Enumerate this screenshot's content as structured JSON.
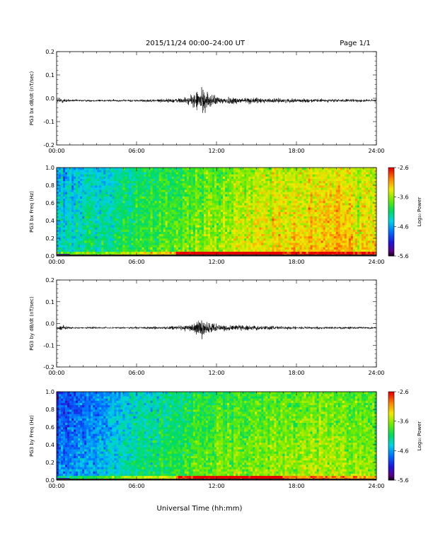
{
  "header": {
    "title": "2015/11/24  00:00–24:00 UT",
    "page": "Page 1/1"
  },
  "footer": {
    "xlabel": "Universal Time (hh:mm)"
  },
  "chart_data": [
    {
      "type": "line",
      "name": "bx-waveform",
      "ylabel": "PG3 bx dB/dt (nT/sec)",
      "xlabel": "",
      "xticks": [
        "00:00",
        "06:00",
        "12:00",
        "18:00",
        "24:00"
      ],
      "xlim": [
        0,
        24
      ],
      "ylim": [
        -0.2,
        0.2
      ],
      "yticks": [
        "0.2",
        "0.1",
        "0.0",
        "-0.1",
        "-0.2"
      ],
      "baseline": -0.01,
      "envelope": [
        {
          "x": 0.0,
          "amp": 0.006
        },
        {
          "x": 0.3,
          "amp": 0.012
        },
        {
          "x": 1.0,
          "amp": 0.004
        },
        {
          "x": 5.0,
          "amp": 0.004
        },
        {
          "x": 7.0,
          "amp": 0.005
        },
        {
          "x": 9.0,
          "amp": 0.008
        },
        {
          "x": 10.0,
          "amp": 0.015
        },
        {
          "x": 10.6,
          "amp": 0.04
        },
        {
          "x": 11.0,
          "amp": 0.045
        },
        {
          "x": 11.4,
          "amp": 0.03
        },
        {
          "x": 12.0,
          "amp": 0.015
        },
        {
          "x": 14.0,
          "amp": 0.012
        },
        {
          "x": 16.0,
          "amp": 0.008
        },
        {
          "x": 20.0,
          "amp": 0.006
        },
        {
          "x": 24.0,
          "amp": 0.005
        }
      ]
    },
    {
      "type": "heatmap",
      "name": "bx-spectrogram",
      "ylabel": "PG3 bx Freq (Hz)",
      "xticks": [
        "00:00",
        "06:00",
        "12:00",
        "18:00",
        "24:00"
      ],
      "xlim": [
        0,
        24
      ],
      "ylim": [
        0.0,
        1.0
      ],
      "yticks": [
        "1.0",
        "0.8",
        "0.6",
        "0.4",
        "0.2",
        "0.0"
      ],
      "colorbar": {
        "label": "Log₁₀ Power",
        "ticks": [
          "-2.6",
          "-3.6",
          "-4.6",
          "-5.6"
        ],
        "range": [
          -5.6,
          -2.6
        ]
      },
      "power_profile": [
        {
          "x": 0,
          "p": -4.3
        },
        {
          "x": 3,
          "p": -4.1
        },
        {
          "x": 6,
          "p": -3.9
        },
        {
          "x": 9,
          "p": -3.7
        },
        {
          "x": 12,
          "p": -3.5
        },
        {
          "x": 15,
          "p": -3.3
        },
        {
          "x": 18,
          "p": -3.2
        },
        {
          "x": 21,
          "p": -3.1
        },
        {
          "x": 24,
          "p": -3.3
        }
      ]
    },
    {
      "type": "line",
      "name": "by-waveform",
      "ylabel": "PG3 by dB/dt (nT/sec)",
      "xlabel": "",
      "xticks": [
        "00:00",
        "06:00",
        "12:00",
        "18:00",
        "24:00"
      ],
      "xlim": [
        0,
        24
      ],
      "ylim": [
        -0.2,
        0.2
      ],
      "yticks": [
        "0.2",
        "0.1",
        "0.0",
        "-0.1",
        "-0.2"
      ],
      "baseline": -0.02,
      "envelope": [
        {
          "x": 0.0,
          "amp": 0.006
        },
        {
          "x": 0.3,
          "amp": 0.01
        },
        {
          "x": 1.0,
          "amp": 0.004
        },
        {
          "x": 5.0,
          "amp": 0.004
        },
        {
          "x": 7.0,
          "amp": 0.005
        },
        {
          "x": 9.0,
          "amp": 0.008
        },
        {
          "x": 10.0,
          "amp": 0.012
        },
        {
          "x": 10.6,
          "amp": 0.03
        },
        {
          "x": 11.0,
          "amp": 0.035
        },
        {
          "x": 11.4,
          "amp": 0.022
        },
        {
          "x": 12.0,
          "amp": 0.012
        },
        {
          "x": 14.0,
          "amp": 0.01
        },
        {
          "x": 16.0,
          "amp": 0.007
        },
        {
          "x": 20.0,
          "amp": 0.005
        },
        {
          "x": 24.0,
          "amp": 0.004
        }
      ]
    },
    {
      "type": "heatmap",
      "name": "by-spectrogram",
      "ylabel": "PG3 by Freq (Hz)",
      "xticks": [
        "00:00",
        "06:00",
        "12:00",
        "18:00",
        "24:00"
      ],
      "xlim": [
        0,
        24
      ],
      "ylim": [
        0.0,
        1.0
      ],
      "yticks": [
        "1.0",
        "0.8",
        "0.6",
        "0.4",
        "0.2",
        "0.0"
      ],
      "colorbar": {
        "label": "Log₁₀ Power",
        "ticks": [
          "-2.6",
          "-3.6",
          "-4.6",
          "-5.6"
        ],
        "range": [
          -5.6,
          -2.6
        ]
      },
      "power_profile": [
        {
          "x": 0,
          "p": -4.7
        },
        {
          "x": 3,
          "p": -4.5
        },
        {
          "x": 6,
          "p": -4.1
        },
        {
          "x": 9,
          "p": -3.9
        },
        {
          "x": 12,
          "p": -3.7
        },
        {
          "x": 15,
          "p": -3.6
        },
        {
          "x": 18,
          "p": -3.5
        },
        {
          "x": 21,
          "p": -3.5
        },
        {
          "x": 24,
          "p": -3.6
        }
      ]
    }
  ]
}
